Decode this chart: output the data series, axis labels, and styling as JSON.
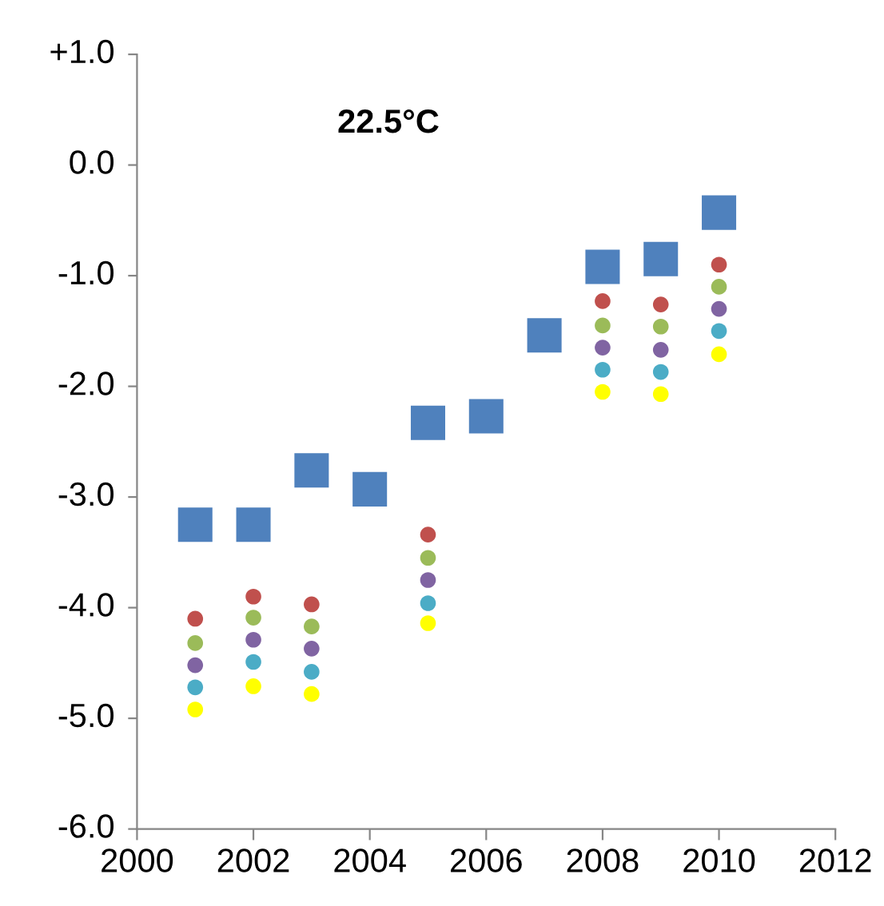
{
  "chart_data": {
    "type": "scatter",
    "title": "22.5°C",
    "x": [
      2001,
      2002,
      2003,
      2004,
      2005,
      2006,
      2007,
      2008,
      2009,
      2010
    ],
    "series": [
      {
        "color": "#4f81bd",
        "marker": "square",
        "values": [
          -3.25,
          -3.25,
          -2.76,
          -2.93,
          -2.33,
          -2.27,
          -1.54,
          -0.92,
          -0.85,
          -0.43
        ]
      },
      {
        "color": "#c0504d",
        "marker": "circle",
        "x": [
          2001,
          2002,
          2003,
          2005,
          2008,
          2009,
          2010
        ],
        "values": [
          -4.1,
          -3.9,
          -3.97,
          -3.34,
          -1.23,
          -1.26,
          -0.9
        ]
      },
      {
        "color": "#9bbb59",
        "marker": "circle",
        "x": [
          2001,
          2002,
          2003,
          2005,
          2008,
          2009,
          2010
        ],
        "values": [
          -4.32,
          -4.09,
          -4.17,
          -3.55,
          -1.45,
          -1.46,
          -1.1
        ]
      },
      {
        "color": "#8064a2",
        "marker": "circle",
        "x": [
          2001,
          2002,
          2003,
          2005,
          2008,
          2009,
          2010
        ],
        "values": [
          -4.52,
          -4.29,
          -4.37,
          -3.75,
          -1.65,
          -1.67,
          -1.3
        ]
      },
      {
        "color": "#4bacc6",
        "marker": "circle",
        "x": [
          2001,
          2002,
          2003,
          2005,
          2008,
          2009,
          2010
        ],
        "values": [
          -4.72,
          -4.49,
          -4.58,
          -3.96,
          -1.85,
          -1.87,
          -1.5
        ]
      },
      {
        "color": "#ffff00",
        "marker": "circle",
        "x": [
          2001,
          2002,
          2003,
          2005,
          2008,
          2009,
          2010
        ],
        "values": [
          -4.92,
          -4.71,
          -4.78,
          -4.14,
          -2.05,
          -2.07,
          -1.71
        ]
      }
    ],
    "xlim": [
      2000,
      2012
    ],
    "xticks": [
      2000,
      2002,
      2004,
      2006,
      2008,
      2010,
      2012
    ],
    "ylim": [
      -6,
      1
    ],
    "yticks": [
      {
        "value": -6,
        "label": "-6.0"
      },
      {
        "value": -5,
        "label": "-5.0"
      },
      {
        "value": -4,
        "label": "-4.0"
      },
      {
        "value": -3,
        "label": "-3.0"
      },
      {
        "value": -2,
        "label": "-2.0"
      },
      {
        "value": -1,
        "label": "-1.0"
      },
      {
        "value": 0,
        "label": "0.0"
      },
      {
        "value": 1,
        "label": "+1.0"
      }
    ],
    "grid": false,
    "legend": false
  }
}
